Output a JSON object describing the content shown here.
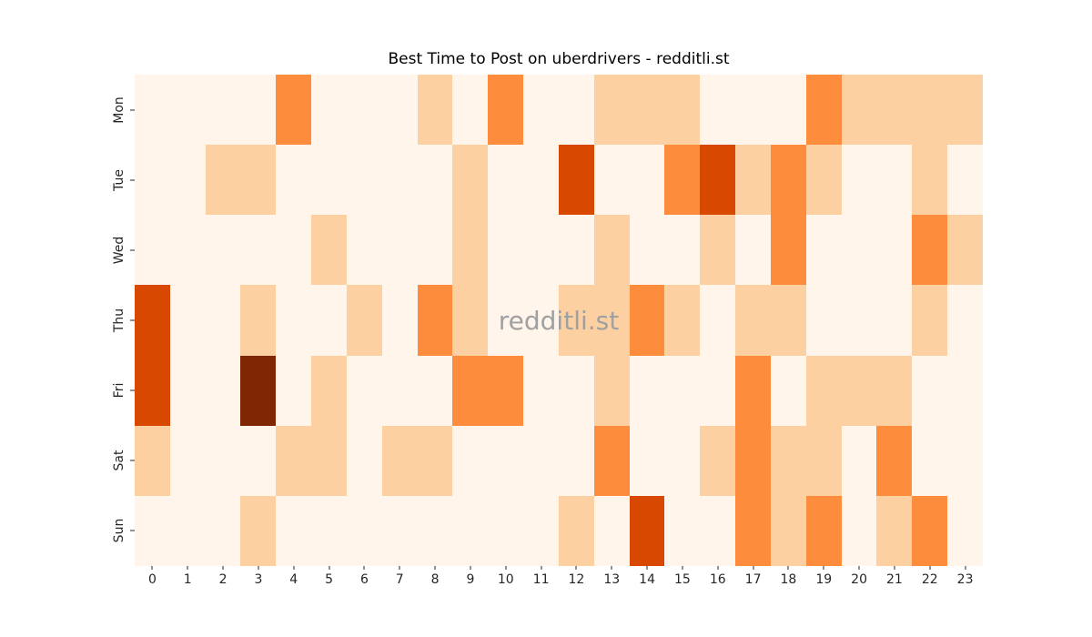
{
  "title": "Best Time to Post on uberdrivers - redditli.st",
  "watermark": "redditli.st",
  "colors": {
    "figure_background": "#ffffff",
    "scale": [
      "#fff5eb",
      "#fdd0a2",
      "#fd8d3c",
      "#d94801",
      "#7f2704"
    ],
    "watermark_gray": "#a0a0a0",
    "tick_label": "#262626"
  },
  "chart_data": {
    "type": "heatmap",
    "title": "Best Time to Post on uberdrivers - redditli.st",
    "xlabel": "",
    "ylabel": "",
    "colormap": "Oranges",
    "value_range": [
      0,
      4
    ],
    "legend": "none",
    "grid": false,
    "x_tick_labels": [
      "0",
      "1",
      "2",
      "3",
      "4",
      "5",
      "6",
      "7",
      "8",
      "9",
      "10",
      "11",
      "12",
      "13",
      "14",
      "15",
      "16",
      "17",
      "18",
      "19",
      "20",
      "21",
      "22",
      "23"
    ],
    "y_tick_labels": [
      "Mon",
      "Tue",
      "Wed",
      "Thu",
      "Fri",
      "Sat",
      "Sun"
    ],
    "series": [
      {
        "name": "Mon",
        "values": [
          0,
          0,
          0,
          0,
          2,
          0,
          0,
          0,
          1,
          0,
          2,
          0,
          0,
          1,
          1,
          1,
          0,
          0,
          0,
          2,
          1,
          1,
          1,
          1
        ]
      },
      {
        "name": "Tue",
        "values": [
          0,
          0,
          1,
          1,
          0,
          0,
          0,
          0,
          0,
          1,
          0,
          0,
          3,
          0,
          0,
          2,
          3,
          1,
          2,
          1,
          0,
          0,
          1,
          0
        ]
      },
      {
        "name": "Wed",
        "values": [
          0,
          0,
          0,
          0,
          0,
          1,
          0,
          0,
          0,
          1,
          0,
          0,
          0,
          1,
          0,
          0,
          1,
          0,
          2,
          0,
          0,
          0,
          2,
          1
        ]
      },
      {
        "name": "Thu",
        "values": [
          3,
          0,
          0,
          1,
          0,
          0,
          1,
          0,
          2,
          1,
          0,
          0,
          1,
          1,
          2,
          1,
          0,
          1,
          1,
          0,
          0,
          0,
          1,
          0
        ]
      },
      {
        "name": "Fri",
        "values": [
          3,
          0,
          0,
          4,
          0,
          1,
          0,
          0,
          0,
          2,
          2,
          0,
          0,
          1,
          0,
          0,
          0,
          2,
          0,
          1,
          1,
          1,
          0,
          0
        ]
      },
      {
        "name": "Sat",
        "values": [
          1,
          0,
          0,
          0,
          1,
          1,
          0,
          1,
          1,
          0,
          0,
          0,
          0,
          2,
          0,
          0,
          1,
          2,
          1,
          1,
          0,
          2,
          0,
          0
        ]
      },
      {
        "name": "Sun",
        "values": [
          0,
          0,
          0,
          1,
          0,
          0,
          0,
          0,
          0,
          0,
          0,
          0,
          1,
          0,
          3,
          0,
          0,
          2,
          1,
          2,
          0,
          1,
          2,
          0
        ]
      }
    ]
  }
}
